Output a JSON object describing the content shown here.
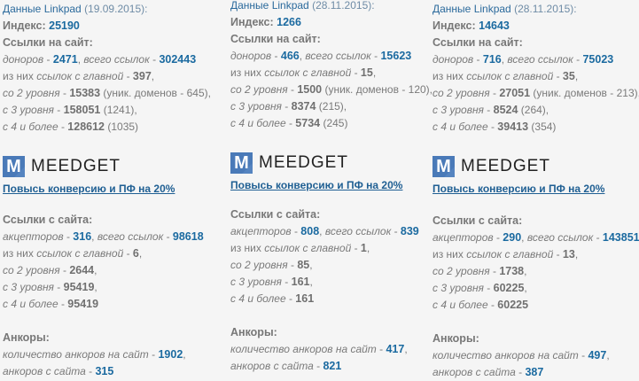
{
  "colors": {
    "background": "#f5f5f5",
    "text": "#7a7a7a",
    "value": "#1b6aa0",
    "link": "#1f5f93",
    "logo": "#4a7ab8"
  },
  "columns": [
    {
      "heading": "Данные Linkpad",
      "date": "(19.09.2015):",
      "index_label": "Индекс:",
      "index_value": "25190",
      "in_title": "Ссылки на сайт:",
      "in_lines": [
        [
          [
            "доноров",
            "i"
          ],
          [
            " - ",
            "n"
          ],
          [
            "2471",
            "v"
          ],
          [
            ", ",
            "n"
          ],
          [
            "всего ссылок",
            "i"
          ],
          [
            " - ",
            "n"
          ],
          [
            "302443",
            "v"
          ]
        ],
        [
          [
            "из них ",
            "n"
          ],
          [
            "ссылок с главной",
            "i"
          ],
          [
            " - ",
            "n"
          ],
          [
            "397",
            "b"
          ],
          [
            ",",
            "n"
          ]
        ],
        [
          [
            "со 2 уровня",
            "i"
          ],
          [
            " - ",
            "n"
          ],
          [
            "15383",
            "b"
          ],
          [
            " (уник. доменов - 645),",
            "n"
          ]
        ],
        [
          [
            "с 3 уровня",
            "i"
          ],
          [
            " - ",
            "n"
          ],
          [
            "158051",
            "b"
          ],
          [
            " (1241),",
            "n"
          ]
        ],
        [
          [
            "с 4 и более",
            "i"
          ],
          [
            " - ",
            "n"
          ],
          [
            "128612",
            "b"
          ],
          [
            " (1035)",
            "n"
          ]
        ]
      ],
      "logo_letter": "M",
      "logo_text": "MEEDGET",
      "promo": "Повысь конверсию и ПФ на 20%",
      "out_title": "Ссылки с сайта:",
      "out_lines": [
        [
          [
            "акцепторов",
            "i"
          ],
          [
            " - ",
            "n"
          ],
          [
            "316",
            "v"
          ],
          [
            ", ",
            "n"
          ],
          [
            "всего ссылок",
            "i"
          ],
          [
            " - ",
            "n"
          ],
          [
            "98618",
            "v"
          ]
        ],
        [
          [
            "из них ",
            "n"
          ],
          [
            "ссылок с главной",
            "i"
          ],
          [
            " - ",
            "n"
          ],
          [
            "6",
            "b"
          ],
          [
            ",",
            "n"
          ]
        ],
        [
          [
            "со 2 уровня",
            "i"
          ],
          [
            " - ",
            "n"
          ],
          [
            "2644",
            "b"
          ],
          [
            ",",
            "n"
          ]
        ],
        [
          [
            "с 3 уровня",
            "i"
          ],
          [
            " - ",
            "n"
          ],
          [
            "95419",
            "b"
          ],
          [
            ",",
            "n"
          ]
        ],
        [
          [
            "с 4 и более",
            "i"
          ],
          [
            " - ",
            "n"
          ],
          [
            "95419",
            "b"
          ]
        ]
      ],
      "anchor_title": "Анкоры:",
      "anchor_lines": [
        [
          [
            "количество анкоров на сайт",
            "i"
          ],
          [
            " - ",
            "n"
          ],
          [
            "1902",
            "v"
          ],
          [
            ",",
            "n"
          ]
        ],
        [
          [
            "анкоров с сайта",
            "i"
          ],
          [
            " - ",
            "n"
          ],
          [
            "315",
            "v"
          ]
        ]
      ]
    },
    {
      "heading": "Данные Linkpad",
      "date": "(28.11.2015):",
      "index_label": "Индекс:",
      "index_value": "1266",
      "in_title": "Ссылки на сайт:",
      "in_lines": [
        [
          [
            "доноров",
            "i"
          ],
          [
            " - ",
            "n"
          ],
          [
            "466",
            "v"
          ],
          [
            ", ",
            "n"
          ],
          [
            "всего ссылок",
            "i"
          ],
          [
            " - ",
            "n"
          ],
          [
            "15623",
            "v"
          ]
        ],
        [
          [
            "из них ",
            "n"
          ],
          [
            "ссылок с главной",
            "i"
          ],
          [
            " - ",
            "n"
          ],
          [
            "15",
            "b"
          ],
          [
            ",",
            "n"
          ]
        ],
        [
          [
            "со 2 уровня",
            "i"
          ],
          [
            " - ",
            "n"
          ],
          [
            "1500",
            "b"
          ],
          [
            " (уник. доменов - 120),",
            "n"
          ]
        ],
        [
          [
            "с 3 уровня",
            "i"
          ],
          [
            " - ",
            "n"
          ],
          [
            "8374",
            "b"
          ],
          [
            " (215),",
            "n"
          ]
        ],
        [
          [
            "с 4 и более",
            "i"
          ],
          [
            " - ",
            "n"
          ],
          [
            "5734",
            "b"
          ],
          [
            " (245)",
            "n"
          ]
        ]
      ],
      "logo_letter": "M",
      "logo_text": "MEEDGET",
      "promo": "Повысь конверсию и ПФ на 20%",
      "out_title": "Ссылки с сайта:",
      "out_lines": [
        [
          [
            "акцепторов",
            "i"
          ],
          [
            " - ",
            "n"
          ],
          [
            "808",
            "v"
          ],
          [
            ", ",
            "n"
          ],
          [
            "всего ссылок",
            "i"
          ],
          [
            " - ",
            "n"
          ],
          [
            "839",
            "v"
          ]
        ],
        [
          [
            "из них ",
            "n"
          ],
          [
            "ссылок с главной",
            "i"
          ],
          [
            " - ",
            "n"
          ],
          [
            "1",
            "b"
          ],
          [
            ",",
            "n"
          ]
        ],
        [
          [
            "со 2 уровня",
            "i"
          ],
          [
            " - ",
            "n"
          ],
          [
            "85",
            "b"
          ],
          [
            ",",
            "n"
          ]
        ],
        [
          [
            "с 3 уровня",
            "i"
          ],
          [
            " - ",
            "n"
          ],
          [
            "161",
            "b"
          ],
          [
            ",",
            "n"
          ]
        ],
        [
          [
            "с 4 и более",
            "i"
          ],
          [
            " - ",
            "n"
          ],
          [
            "161",
            "b"
          ]
        ]
      ],
      "anchor_title": "Анкоры:",
      "anchor_lines": [
        [
          [
            "количество анкоров на сайт",
            "i"
          ],
          [
            " - ",
            "n"
          ],
          [
            "417",
            "v"
          ],
          [
            ",",
            "n"
          ]
        ],
        [
          [
            "анкоров с сайта",
            "i"
          ],
          [
            " - ",
            "n"
          ],
          [
            "821",
            "v"
          ]
        ]
      ]
    },
    {
      "heading": "Данные Linkpad",
      "date": "(28.11.2015):",
      "index_label": "Индекс:",
      "index_value": "14643",
      "in_title": "Ссылки на сайт:",
      "in_lines": [
        [
          [
            "доноров",
            "i"
          ],
          [
            " - ",
            "n"
          ],
          [
            "716",
            "v"
          ],
          [
            ", ",
            "n"
          ],
          [
            "всего ссылок",
            "i"
          ],
          [
            " - ",
            "n"
          ],
          [
            "75023",
            "v"
          ]
        ],
        [
          [
            "из них ",
            "n"
          ],
          [
            "ссылок с главной",
            "i"
          ],
          [
            " - ",
            "n"
          ],
          [
            "35",
            "b"
          ],
          [
            ",",
            "n"
          ]
        ],
        [
          [
            "со 2 уровня",
            "i"
          ],
          [
            " - ",
            "n"
          ],
          [
            "27051",
            "b"
          ],
          [
            " (уник. доменов - 213),",
            "n"
          ]
        ],
        [
          [
            "с 3 уровня",
            "i"
          ],
          [
            " - ",
            "n"
          ],
          [
            "8524",
            "b"
          ],
          [
            " (264),",
            "n"
          ]
        ],
        [
          [
            "с 4 и более",
            "i"
          ],
          [
            " - ",
            "n"
          ],
          [
            "39413",
            "b"
          ],
          [
            " (354)",
            "n"
          ]
        ]
      ],
      "logo_letter": "M",
      "logo_text": "MEEDGET",
      "promo": "Повысь конверсию и ПФ на 20%",
      "out_title": "Ссылки с сайта:",
      "out_lines": [
        [
          [
            "акцепторов",
            "i"
          ],
          [
            " - ",
            "n"
          ],
          [
            "290",
            "v"
          ],
          [
            ", ",
            "n"
          ],
          [
            "всего ссылок",
            "i"
          ],
          [
            " - ",
            "n"
          ],
          [
            "143851",
            "v"
          ]
        ],
        [
          [
            "из них ",
            "n"
          ],
          [
            "ссылок с главной",
            "i"
          ],
          [
            " - ",
            "n"
          ],
          [
            "13",
            "b"
          ],
          [
            ",",
            "n"
          ]
        ],
        [
          [
            "со 2 уровня",
            "i"
          ],
          [
            " - ",
            "n"
          ],
          [
            "1738",
            "b"
          ],
          [
            ",",
            "n"
          ]
        ],
        [
          [
            "с 3 уровня",
            "i"
          ],
          [
            " - ",
            "n"
          ],
          [
            "60225",
            "b"
          ],
          [
            ",",
            "n"
          ]
        ],
        [
          [
            "с 4 и более",
            "i"
          ],
          [
            " - ",
            "n"
          ],
          [
            "60225",
            "b"
          ]
        ]
      ],
      "anchor_title": "Анкоры:",
      "anchor_lines": [
        [
          [
            "количество анкоров на сайт",
            "i"
          ],
          [
            " - ",
            "n"
          ],
          [
            "497",
            "v"
          ],
          [
            ",",
            "n"
          ]
        ],
        [
          [
            "анкоров с сайта",
            "i"
          ],
          [
            " - ",
            "n"
          ],
          [
            "387",
            "v"
          ]
        ]
      ]
    }
  ]
}
